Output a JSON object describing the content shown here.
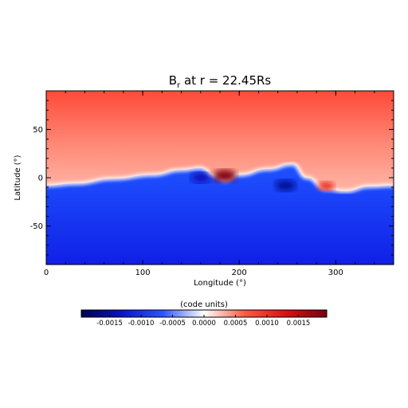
{
  "chart_data": {
    "type": "heatmap",
    "title": "B",
    "title_sub": "r",
    "title_rest": " at r = 22.45Rs",
    "xlabel": "Longitude (°)",
    "ylabel": "Latitude (°)",
    "xlim": [
      0,
      360
    ],
    "ylim": [
      -90,
      90
    ],
    "x_ticks": [
      "0",
      "100",
      "200",
      "300"
    ],
    "y_ticks": [
      "-50",
      "0",
      "50"
    ],
    "colorbar": {
      "label": "(code units)",
      "range": [
        -0.00195,
        0.00195
      ],
      "ticks": [
        "-0.0015",
        "-0.0010",
        "-0.0005",
        "0.0000",
        "0.0005",
        "0.0010",
        "0.0015"
      ],
      "colors": [
        "#000050",
        "#0a14c8",
        "#2d55ff",
        "#ffffff",
        "#ff5a40",
        "#dc1010",
        "#780010"
      ]
    },
    "field": {
      "positive_value": 0.0009,
      "negative_value": -0.0009,
      "neutral_line": [
        {
          "lon": 0,
          "lat": -8
        },
        {
          "lon": 30,
          "lat": -6
        },
        {
          "lon": 70,
          "lat": -1
        },
        {
          "lon": 110,
          "lat": 3
        },
        {
          "lon": 140,
          "lat": 8
        },
        {
          "lon": 160,
          "lat": 10
        },
        {
          "lon": 175,
          "lat": 2
        },
        {
          "lon": 185,
          "lat": -3
        },
        {
          "lon": 200,
          "lat": 3
        },
        {
          "lon": 230,
          "lat": 9
        },
        {
          "lon": 255,
          "lat": 14
        },
        {
          "lon": 270,
          "lat": 0
        },
        {
          "lon": 290,
          "lat": -12
        },
        {
          "lon": 310,
          "lat": -14
        },
        {
          "lon": 335,
          "lat": -9
        },
        {
          "lon": 360,
          "lat": -8
        }
      ],
      "features": [
        {
          "lon": 185,
          "lat": 2,
          "value": 0.0019
        },
        {
          "lon": 160,
          "lat": 0,
          "value": -0.0014
        },
        {
          "lon": 248,
          "lat": -8,
          "value": -0.0016
        },
        {
          "lon": 290,
          "lat": -9,
          "value": 0.0011
        }
      ]
    }
  }
}
